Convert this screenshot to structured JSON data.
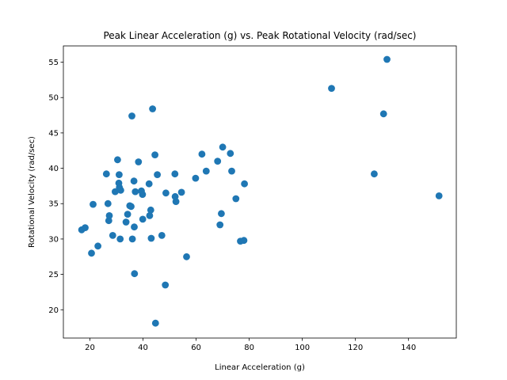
{
  "chart_data": {
    "type": "scatter",
    "title": "Peak Linear Acceleration (g) vs. Peak  Rotational Velocity (rad/sec)",
    "xlabel": "Linear Acceleration (g)",
    "ylabel": "Rotational Velocity (rad/sec)",
    "xlim": [
      10,
      158
    ],
    "ylim": [
      16,
      57.3
    ],
    "xticks": [
      20,
      40,
      60,
      80,
      100,
      120,
      140
    ],
    "yticks": [
      20,
      25,
      30,
      35,
      40,
      45,
      50,
      55
    ],
    "grid": false,
    "marker_color": "#1f77b4",
    "points": [
      {
        "x": 16.9,
        "y": 31.3
      },
      {
        "x": 18.2,
        "y": 31.6
      },
      {
        "x": 20.6,
        "y": 28.0
      },
      {
        "x": 21.2,
        "y": 34.9
      },
      {
        "x": 23.0,
        "y": 29.0
      },
      {
        "x": 26.2,
        "y": 39.2
      },
      {
        "x": 26.8,
        "y": 35.0
      },
      {
        "x": 27.1,
        "y": 32.6
      },
      {
        "x": 27.3,
        "y": 33.3
      },
      {
        "x": 28.6,
        "y": 30.5
      },
      {
        "x": 29.5,
        "y": 36.7
      },
      {
        "x": 30.4,
        "y": 41.2
      },
      {
        "x": 30.9,
        "y": 37.9
      },
      {
        "x": 31.0,
        "y": 39.1
      },
      {
        "x": 31.1,
        "y": 37.3
      },
      {
        "x": 31.4,
        "y": 30.0
      },
      {
        "x": 31.6,
        "y": 36.9
      },
      {
        "x": 33.6,
        "y": 32.4
      },
      {
        "x": 34.2,
        "y": 33.5
      },
      {
        "x": 35.0,
        "y": 34.7
      },
      {
        "x": 35.5,
        "y": 34.6
      },
      {
        "x": 35.8,
        "y": 47.4
      },
      {
        "x": 36.0,
        "y": 30.0
      },
      {
        "x": 36.6,
        "y": 38.2
      },
      {
        "x": 36.7,
        "y": 31.7
      },
      {
        "x": 36.8,
        "y": 25.1
      },
      {
        "x": 37.1,
        "y": 36.7
      },
      {
        "x": 38.3,
        "y": 40.9
      },
      {
        "x": 39.4,
        "y": 36.8
      },
      {
        "x": 39.8,
        "y": 36.3
      },
      {
        "x": 39.9,
        "y": 32.8
      },
      {
        "x": 42.3,
        "y": 37.8
      },
      {
        "x": 42.5,
        "y": 33.3
      },
      {
        "x": 42.9,
        "y": 34.1
      },
      {
        "x": 43.1,
        "y": 30.1
      },
      {
        "x": 43.6,
        "y": 48.4
      },
      {
        "x": 44.5,
        "y": 41.9
      },
      {
        "x": 44.7,
        "y": 18.1
      },
      {
        "x": 45.4,
        "y": 39.1
      },
      {
        "x": 47.1,
        "y": 30.5
      },
      {
        "x": 48.4,
        "y": 23.5
      },
      {
        "x": 48.6,
        "y": 36.5
      },
      {
        "x": 52.0,
        "y": 39.2
      },
      {
        "x": 52.1,
        "y": 36.0
      },
      {
        "x": 52.4,
        "y": 35.3
      },
      {
        "x": 54.5,
        "y": 36.6
      },
      {
        "x": 56.4,
        "y": 27.5
      },
      {
        "x": 59.8,
        "y": 38.6
      },
      {
        "x": 62.2,
        "y": 42.0
      },
      {
        "x": 63.8,
        "y": 39.6
      },
      {
        "x": 68.1,
        "y": 41.0
      },
      {
        "x": 69.0,
        "y": 32.0
      },
      {
        "x": 69.5,
        "y": 33.6
      },
      {
        "x": 70.0,
        "y": 43.0
      },
      {
        "x": 72.9,
        "y": 42.1
      },
      {
        "x": 73.4,
        "y": 39.6
      },
      {
        "x": 75.0,
        "y": 35.7
      },
      {
        "x": 76.7,
        "y": 29.7
      },
      {
        "x": 78.0,
        "y": 29.8
      },
      {
        "x": 78.2,
        "y": 37.8
      },
      {
        "x": 111.0,
        "y": 51.3
      },
      {
        "x": 127.1,
        "y": 39.2
      },
      {
        "x": 130.6,
        "y": 47.7
      },
      {
        "x": 131.9,
        "y": 55.4
      },
      {
        "x": 151.5,
        "y": 36.1
      }
    ]
  }
}
